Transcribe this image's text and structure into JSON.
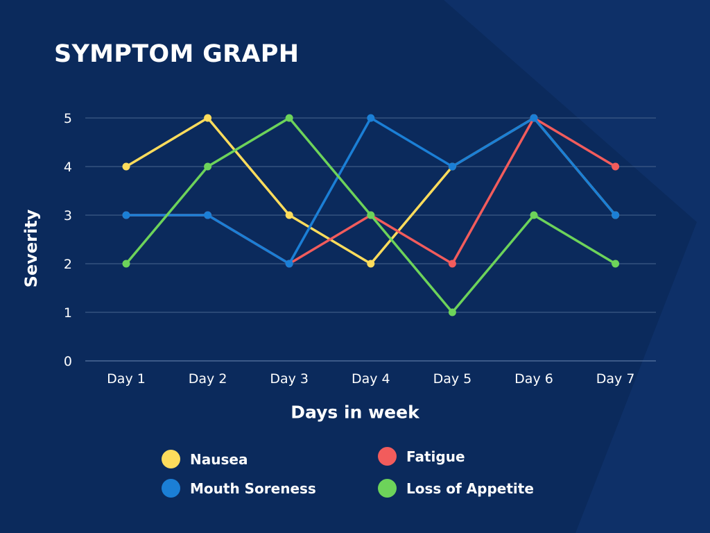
{
  "title": "SYMPTOM GRAPH",
  "chart_data": {
    "type": "line",
    "title": "SYMPTOM GRAPH",
    "xlabel": "Days in week",
    "ylabel": "Severity",
    "categories": [
      "Day 1",
      "Day 2",
      "Day 3",
      "Day 4",
      "Day 5",
      "Day 6",
      "Day 7"
    ],
    "yticks": [
      0,
      1,
      2,
      3,
      4,
      5
    ],
    "ylim": [
      0,
      5
    ],
    "grid": true,
    "legend_position": "bottom",
    "series": [
      {
        "name": "Nausea",
        "color": "#fddc5c",
        "values": [
          4,
          5,
          3,
          2,
          4,
          5,
          3
        ]
      },
      {
        "name": "Fatigue",
        "color": "#f25c5c",
        "values": [
          3,
          3,
          2,
          3,
          2,
          5,
          4
        ]
      },
      {
        "name": "Mouth Soreness",
        "color": "#1b7fd6",
        "values": [
          3,
          3,
          2,
          5,
          4,
          5,
          3
        ]
      },
      {
        "name": "Loss of Appetite",
        "color": "#6dd35a",
        "values": [
          2,
          4,
          5,
          3,
          1,
          3,
          2
        ]
      }
    ]
  },
  "colors": {
    "background": "#0b2a5c",
    "grid": "#3d5a86",
    "text": "#ffffff"
  }
}
